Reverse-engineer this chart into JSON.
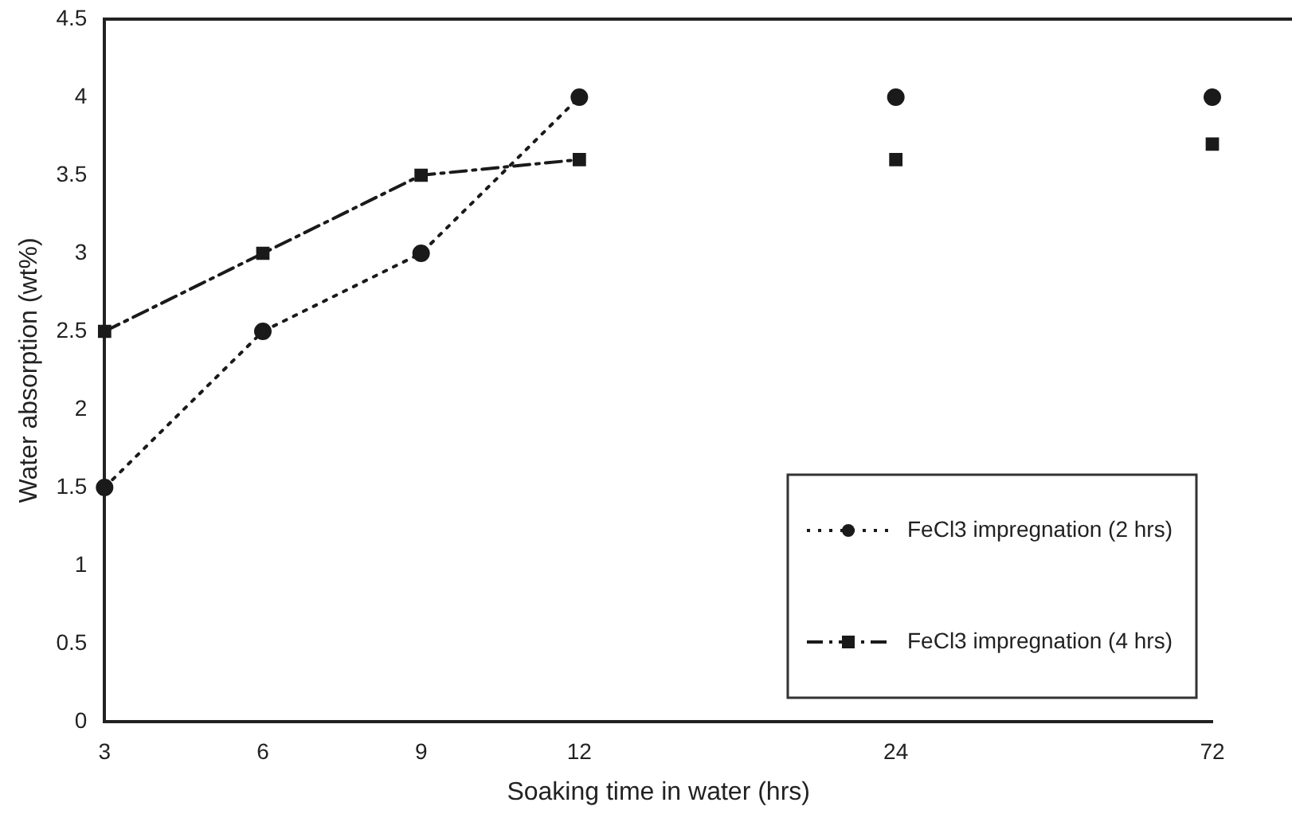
{
  "chart_data": {
    "type": "line",
    "xlabel": "Soaking time in water (hrs)",
    "ylabel": "Water absorption (wt%)",
    "categories": [
      "3",
      "6",
      "9",
      "12",
      null,
      "24",
      null,
      "72"
    ],
    "series": [
      {
        "name": "FeCl3 impregnation (2 hrs)",
        "color": "#1a1a1a",
        "marker": "circle",
        "line_style": "dotted",
        "values": [
          1.5,
          2.5,
          3.0,
          4.0,
          null,
          null,
          null,
          null
        ]
      },
      {
        "name": "FeCl3 impregnation (4 hrs)",
        "color": "#1a1a1a",
        "marker": "square",
        "line_style": "dashed",
        "values": [
          2.5,
          3.0,
          3.5,
          3.6,
          null,
          null,
          null,
          null
        ]
      },
      {
        "type": "scatter",
        "color": "#1a1a1a",
        "marker": "circle",
        "x": [
          "24",
          "72"
        ],
        "values": [
          4.0,
          4.0
        ]
      },
      {
        "type": "scatter",
        "color": "#1a1a1a",
        "marker": "square",
        "x": [
          "24",
          "72"
        ],
        "values": [
          3.6,
          3.7
        ]
      }
    ],
    "ylim": [
      0,
      4.5
    ],
    "yticks": [
      0,
      0.5,
      1,
      1.5,
      2,
      2.5,
      3,
      3.5,
      4,
      4.5
    ],
    "grid": false,
    "legend": "bottom right"
  }
}
